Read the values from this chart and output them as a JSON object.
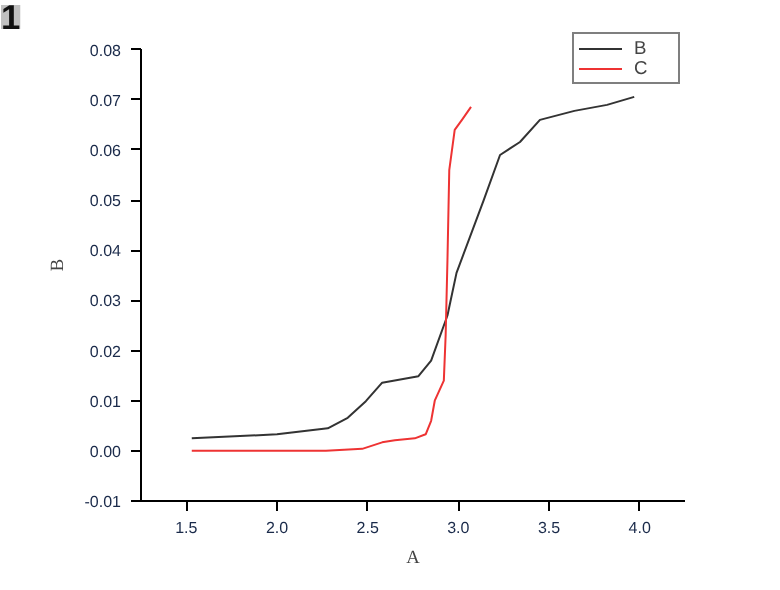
{
  "chart_data": {
    "type": "line",
    "xlabel": "A",
    "ylabel": "B",
    "annotations": [
      "1"
    ],
    "xlim": [
      1.25,
      4.25
    ],
    "xticks": [
      {
        "value": 1.5,
        "label": "1.5"
      },
      {
        "value": 2.0,
        "label": "2.0"
      },
      {
        "value": 2.5,
        "label": "2.5"
      },
      {
        "value": 3.0,
        "label": "3.0"
      },
      {
        "value": 3.5,
        "label": "3.5"
      },
      {
        "value": 4.0,
        "label": "4.0"
      }
    ],
    "ylim": [
      -0.01,
      0.08
    ],
    "yticks": [
      {
        "value": -0.01,
        "label": "-0.01"
      },
      {
        "value": 0.0,
        "label": "0.00"
      },
      {
        "value": 0.01,
        "label": "0.01"
      },
      {
        "value": 0.02,
        "label": "0.02"
      },
      {
        "value": 0.03,
        "label": "0.03"
      },
      {
        "value": 0.04,
        "label": "0.04"
      },
      {
        "value": 0.05,
        "label": "0.05"
      },
      {
        "value": 0.06,
        "label": "0.06"
      },
      {
        "value": 0.07,
        "label": "0.07"
      },
      {
        "value": 0.08,
        "label": "0.08"
      }
    ],
    "grid": false,
    "legend": "top right",
    "line_style": "solid",
    "marker": "none",
    "series": [
      {
        "name": "B",
        "color": "#333333",
        "x": [
          1.53,
          2.0,
          2.28,
          2.39,
          2.49,
          2.58,
          2.78,
          2.85,
          2.94,
          2.99,
          3.14,
          3.23,
          3.34,
          3.45,
          3.64,
          3.82,
          3.97
        ],
        "values": [
          0.0025,
          0.0033,
          0.0045,
          0.0066,
          0.0099,
          0.0136,
          0.0149,
          0.018,
          0.027,
          0.0355,
          0.05,
          0.059,
          0.0616,
          0.066,
          0.0678,
          0.069,
          0.0706
        ]
      },
      {
        "name": "C",
        "color": "#ee3333",
        "x": [
          1.53,
          2.27,
          2.47,
          2.58,
          2.65,
          2.76,
          2.82,
          2.85,
          2.87,
          2.92,
          2.93,
          2.94,
          2.95,
          2.98,
          3.02,
          3.07
        ],
        "values": [
          0.0,
          0.0,
          0.0004,
          0.0017,
          0.0021,
          0.0025,
          0.0033,
          0.006,
          0.01,
          0.014,
          0.023,
          0.038,
          0.056,
          0.064,
          0.066,
          0.0686
        ]
      }
    ]
  }
}
